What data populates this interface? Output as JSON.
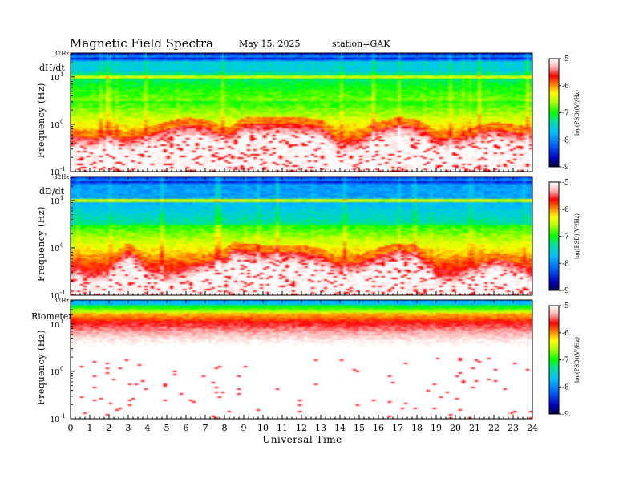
{
  "header": {
    "title": "Magnetic  Field  Spectra",
    "date": "May 15, 2025",
    "station": "station=GAK"
  },
  "chart_data": {
    "type": "heatmap",
    "xlabel": "Universal Time",
    "x_ticks": [
      "0",
      "1",
      "2",
      "3",
      "4",
      "5",
      "6",
      "7",
      "8",
      "9",
      "10",
      "11",
      "12",
      "13",
      "14",
      "15",
      "16",
      "17",
      "18",
      "19",
      "20",
      "21",
      "22",
      "23",
      "24"
    ],
    "xlim": [
      0,
      24
    ],
    "ylabel": "Frequency  (Hz)",
    "y_scale": "log",
    "ylim": [
      0.1,
      32
    ],
    "y_top_label": "32Hz",
    "y_ticks": [
      {
        "base": "10",
        "exp": "1",
        "value": 10
      },
      {
        "base": "10",
        "exp": "0",
        "value": 1
      },
      {
        "base": "10",
        "exp": "-1",
        "value": 0.1
      }
    ],
    "colorbar": {
      "label": "log(PSD)(V²/Hz)",
      "ticks": [
        "-5",
        "-6",
        "-7",
        "-8",
        "-9"
      ],
      "range": [
        -9,
        -5
      ],
      "colors": [
        "#000040",
        "#0000ff",
        "#00a0ff",
        "#00e0c0",
        "#00ff00",
        "#a0ff00",
        "#ffff00",
        "#ff8000",
        "#ff0000",
        "#ffd0d0",
        "#ffffff"
      ]
    },
    "panels": [
      {
        "label": "dH/dt",
        "profile": "dh",
        "cutoff_hours": [
          0,
          1,
          2,
          3,
          4,
          5,
          6,
          7,
          8,
          8.5,
          9,
          10,
          11,
          12,
          13,
          14,
          15,
          16,
          17,
          18,
          19,
          20,
          21,
          22,
          23,
          24
        ],
        "cutoff_hz": [
          0.6,
          0.5,
          0.55,
          0.5,
          0.6,
          0.8,
          1.0,
          0.9,
          0.6,
          0.7,
          1.0,
          1.0,
          1.0,
          1.0,
          0.9,
          0.4,
          0.5,
          0.8,
          1.0,
          0.9,
          0.5,
          0.5,
          0.6,
          0.8,
          0.7,
          0.6
        ]
      },
      {
        "label": "dD/dt",
        "profile": "dd",
        "cutoff_hours": [
          0,
          1,
          2,
          3,
          4,
          5,
          6,
          7,
          8,
          8.5,
          9,
          10,
          11,
          12,
          13,
          14,
          15,
          16,
          17,
          18,
          19,
          20,
          21,
          22,
          23,
          24
        ],
        "cutoff_hz": [
          0.4,
          0.3,
          0.35,
          0.9,
          0.4,
          0.3,
          0.4,
          0.5,
          0.6,
          1.0,
          0.9,
          0.8,
          0.8,
          0.8,
          0.7,
          0.4,
          0.5,
          0.7,
          0.9,
          0.8,
          0.3,
          0.3,
          0.4,
          0.6,
          0.5,
          0.3
        ]
      },
      {
        "label": "Riometer",
        "profile": "rio",
        "cutoff_hours": [
          0,
          24
        ],
        "cutoff_hz": [
          8,
          8
        ]
      }
    ]
  }
}
